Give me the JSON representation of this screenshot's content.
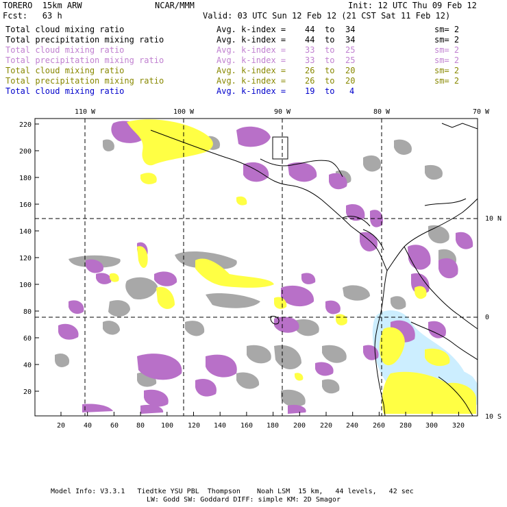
{
  "header": {
    "model": "TORERO  15km ARW",
    "org": "NCAR/MMM",
    "init": "Init: 12 UTC Thu 09 Feb 12",
    "fcst": "Fcst:   63 h",
    "valid": "Valid: 03 UTC Sun 12 Feb 12 (21 CST Sat 11 Feb 12)"
  },
  "legend": [
    {
      "field": "Total cloud mixing ratio",
      "index": "Avg. k-index =",
      "from": "44",
      "to_word": "to",
      "to": "34",
      "sm": "sm= 2",
      "color": "#000000"
    },
    {
      "field": "Total precipitation mixing ratio",
      "index": "Avg. k-index =",
      "from": "44",
      "to_word": "to",
      "to": "34",
      "sm": "sm= 2",
      "color": "#000000"
    },
    {
      "field": "Total cloud mixing ratio",
      "index": "Avg. k-index =",
      "from": "33",
      "to_word": "to",
      "to": "25",
      "sm": "sm= 2",
      "color": "#c080d0"
    },
    {
      "field": "Total precipitation mixing ratio",
      "index": "Avg. k-index =",
      "from": "33",
      "to_word": "to",
      "to": "25",
      "sm": "sm= 2",
      "color": "#c080d0"
    },
    {
      "field": "Total cloud mixing ratio",
      "index": "Avg. k-index =",
      "from": "26",
      "to_word": "to",
      "to": "20",
      "sm": "sm= 2",
      "color": "#888800"
    },
    {
      "field": "Total precipitation mixing ratio",
      "index": "Avg. k-index =",
      "from": "26",
      "to_word": "to",
      "to": "20",
      "sm": "sm= 2",
      "color": "#888800"
    },
    {
      "field": "Total cloud mixing ratio",
      "index": "Avg. k-index =",
      "from": "19",
      "to_word": "to",
      "to": "4",
      "sm": "",
      "color": "#0000cc"
    }
  ],
  "map": {
    "lon_labels": [
      "110 W",
      "100 W",
      "90 W",
      "80 W",
      "70 W"
    ],
    "lat_labels": [
      "10 N",
      "0",
      "10 S"
    ],
    "y_ticks": [
      "220",
      "200",
      "180",
      "160",
      "140",
      "120",
      "100",
      "80",
      "60",
      "40",
      "20"
    ],
    "x_ticks": [
      "20",
      "40",
      "60",
      "80",
      "100",
      "120",
      "140",
      "160",
      "180",
      "200",
      "220",
      "240",
      "260",
      "280",
      "300",
      "320"
    ],
    "x_range": [
      0,
      335
    ],
    "y_range": [
      3,
      224
    ],
    "fill_colors": {
      "gray": "#a8a8a8",
      "purple": "#b870c8",
      "yellow": "#ffff44",
      "cyan": "#cceeff"
    }
  },
  "footer": {
    "line1": "Model Info: V3.3.1   Tiedtke YSU PBL  Thompson    Noah LSM  15 km,   44 levels,   42 sec",
    "line2": "LW: Godd SW: Goddard DIFF: simple KM: 2D Smagor"
  }
}
